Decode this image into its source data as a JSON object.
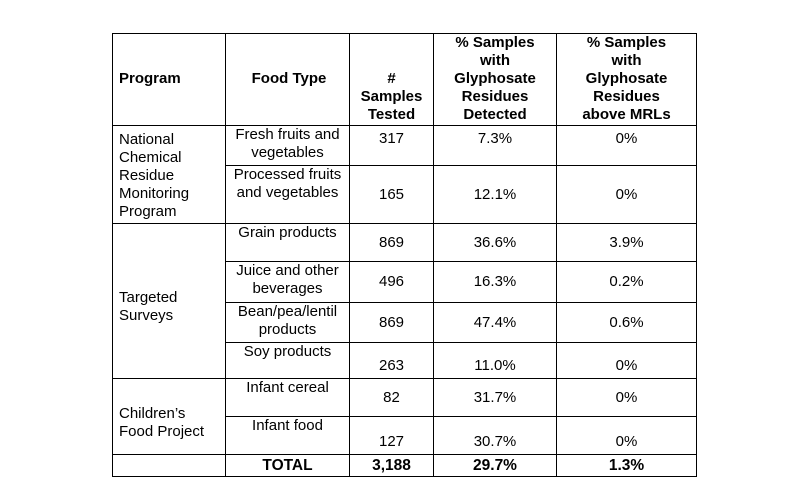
{
  "table": {
    "headers": [
      "Program",
      "Food Type",
      "#\nSamples\nTested",
      "% Samples\nwith\nGlyphosate\nResidues\nDetected",
      "% Samples\nwith\nGlyphosate\nResidues\nabove MRLs"
    ],
    "programs": {
      "national": "National Chemical Residue Monitoring Program",
      "targeted": "Targeted Surveys",
      "children": "Children’s Food Project"
    },
    "rows": [
      {
        "food": "Fresh fruits and vegetables",
        "samples": "317",
        "detected": "7.3%",
        "above": "0%"
      },
      {
        "food": "Processed fruits and vegetables",
        "samples": "165",
        "detected": "12.1%",
        "above": "0%"
      },
      {
        "food": "Grain products",
        "samples": "869",
        "detected": "36.6%",
        "above": "3.9%"
      },
      {
        "food": "Juice and other beverages",
        "samples": "496",
        "detected": "16.3%",
        "above": "0.2%"
      },
      {
        "food": "Bean/pea/lentil products",
        "samples": "869",
        "detected": "47.4%",
        "above": "0.6%"
      },
      {
        "food": "Soy products",
        "samples": "263",
        "detected": "11.0%",
        "above": "0%"
      },
      {
        "food": "Infant cereal",
        "samples": "82",
        "detected": "31.7%",
        "above": "0%"
      },
      {
        "food": "Infant food",
        "samples": "127",
        "detected": "30.7%",
        "above": "0%"
      }
    ],
    "total": {
      "label": "TOTAL",
      "samples": "3,188",
      "detected": "29.7%",
      "above": "1.3%"
    }
  }
}
